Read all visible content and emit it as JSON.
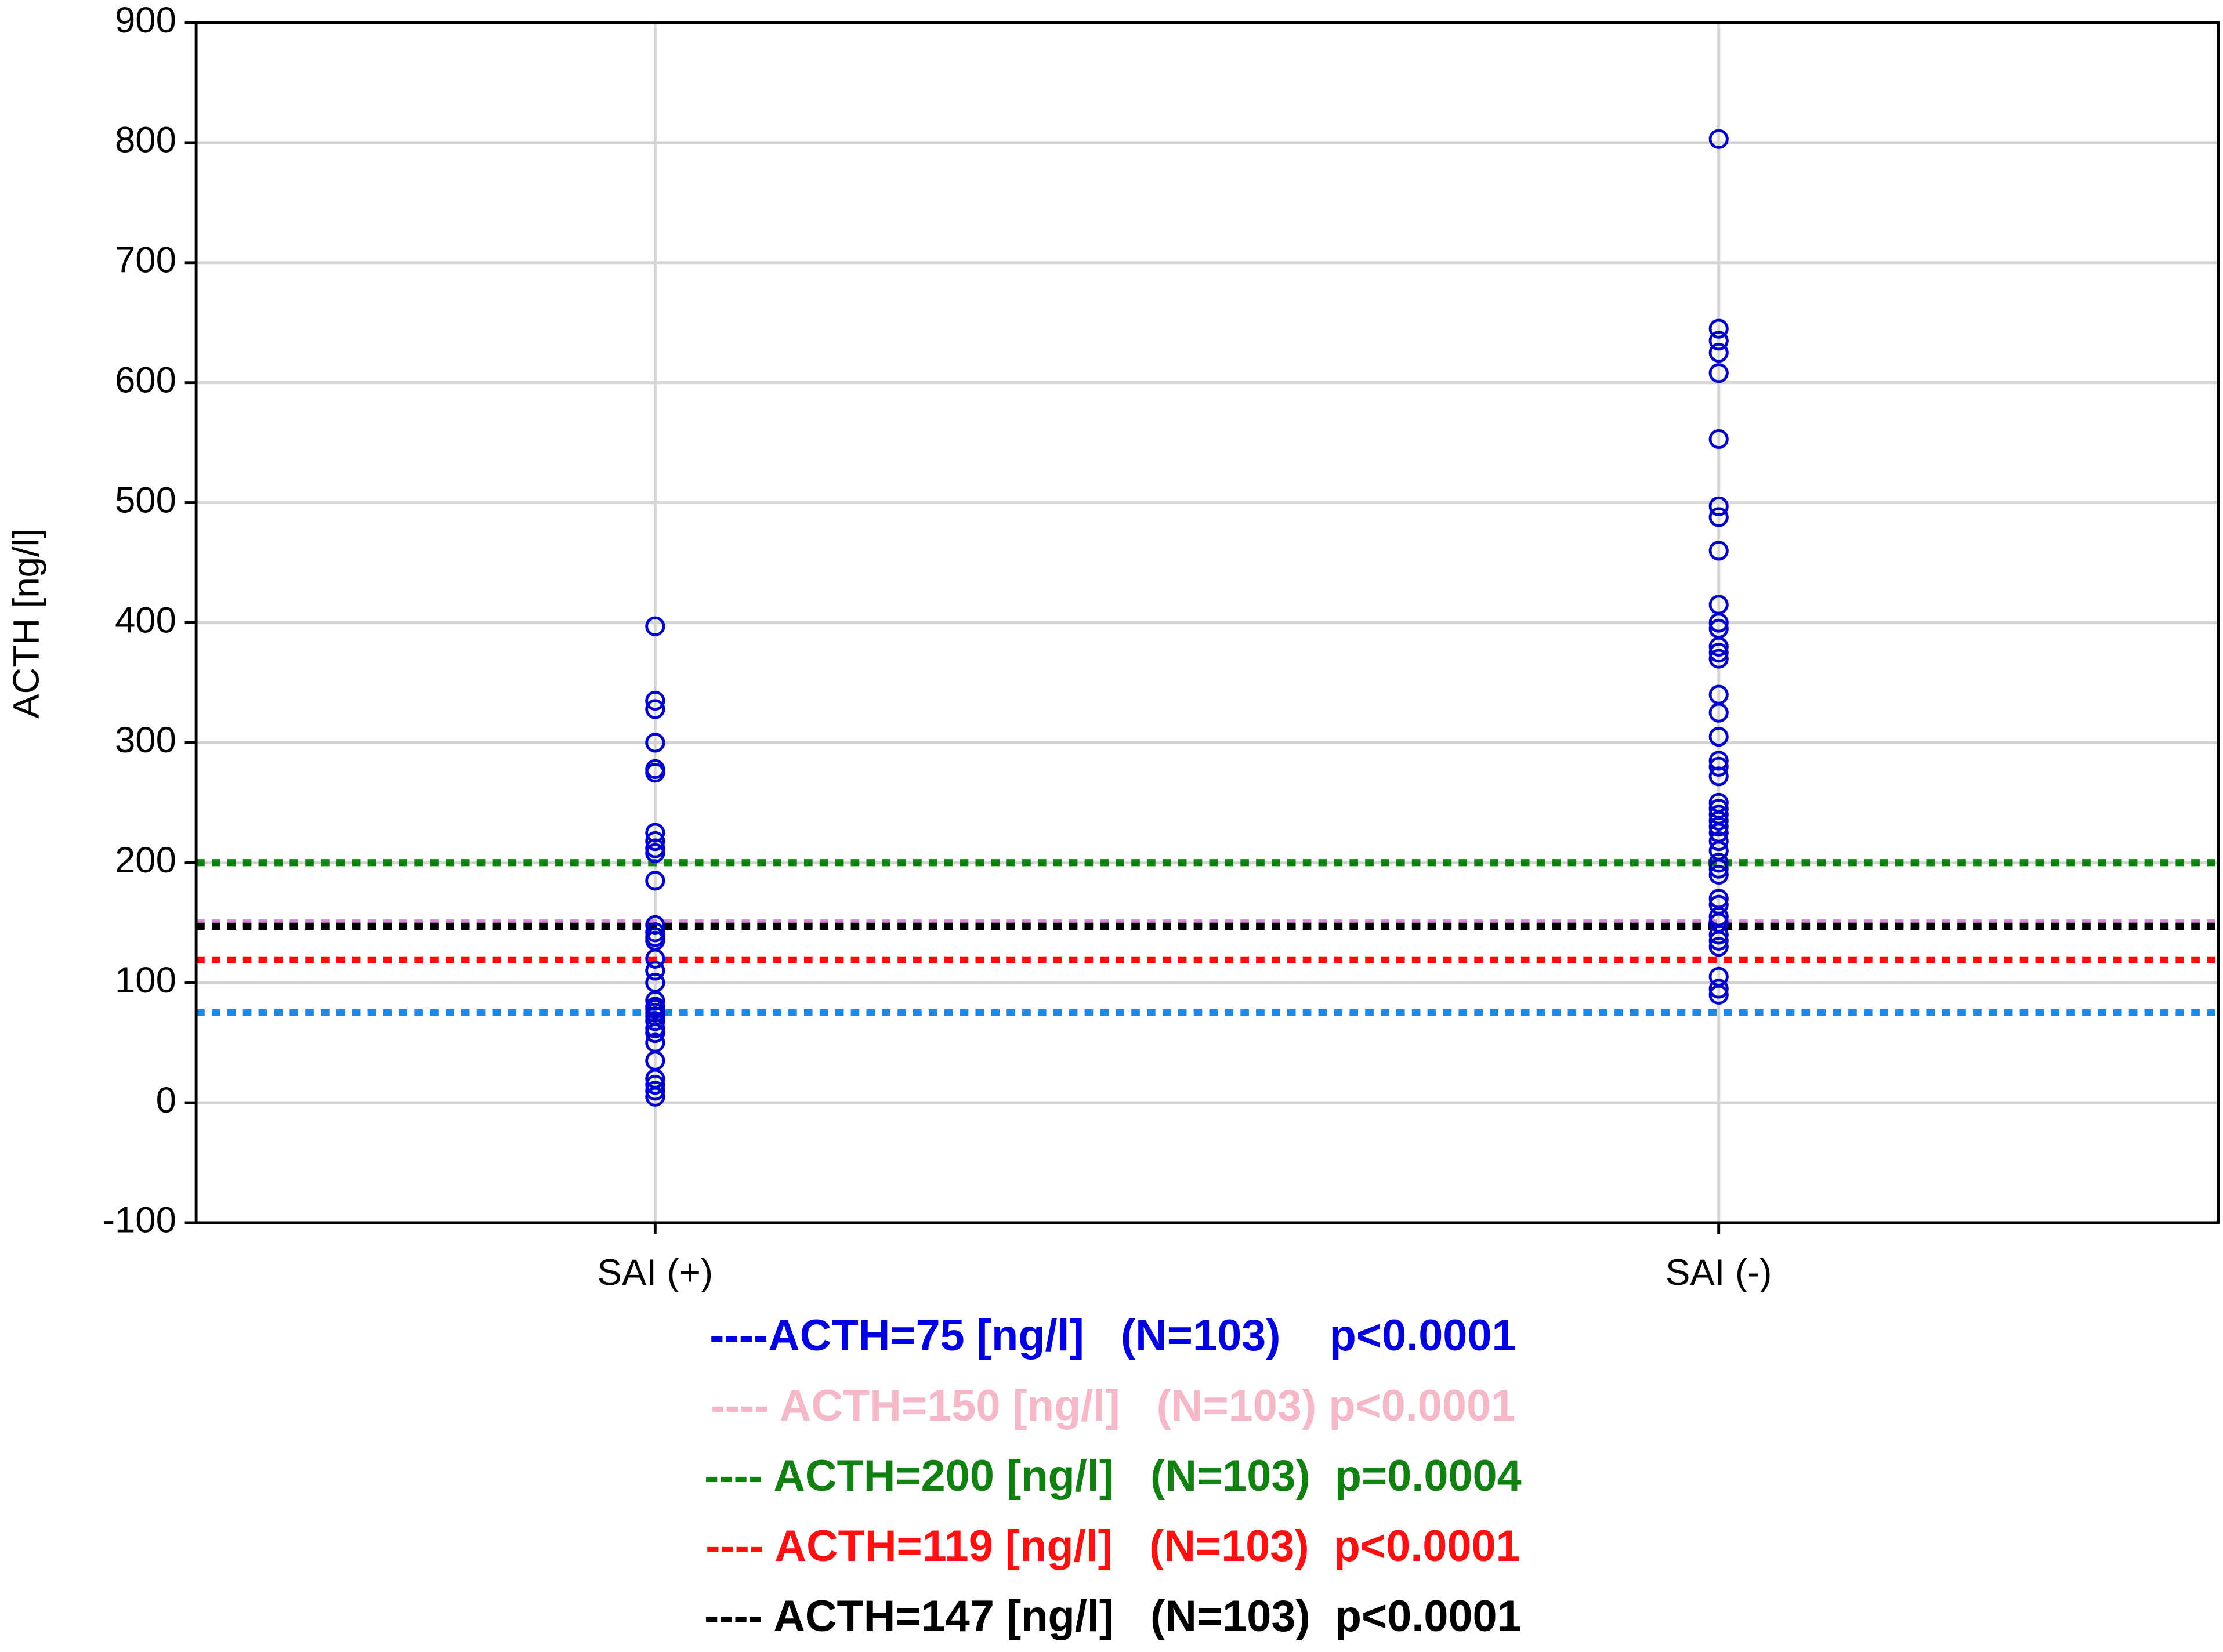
{
  "chart_data": {
    "type": "strip",
    "y_label": "ACTH [ng/l]",
    "categories": [
      "SAI (+)",
      "SAI (-)"
    ],
    "values": [
      [
        397,
        335,
        328,
        300,
        278,
        275,
        225,
        218,
        212,
        208,
        185,
        148,
        142,
        138,
        135,
        120,
        110,
        100,
        85,
        80,
        78,
        75,
        72,
        68,
        62,
        58,
        50,
        35,
        20,
        15,
        10,
        5
      ],
      [
        803,
        645,
        635,
        625,
        608,
        553,
        497,
        488,
        460,
        415,
        400,
        395,
        380,
        375,
        370,
        340,
        325,
        305,
        285,
        280,
        272,
        250,
        245,
        240,
        235,
        230,
        225,
        218,
        210,
        200,
        195,
        190,
        170,
        165,
        155,
        150,
        140,
        135,
        130,
        105,
        95,
        90
      ]
    ],
    "color": "#0000cc",
    "ylim": [
      -100,
      900
    ],
    "yticks": [
      -100,
      0,
      100,
      200,
      300,
      400,
      500,
      600,
      700,
      800,
      900
    ],
    "grid": true,
    "reference_lines": [
      {
        "value": 75,
        "color": "#1e88e5",
        "label": "----ACTH=75 [ng/l]   (N=103)    p<0.0001",
        "label_color": "#0000e0"
      },
      {
        "value": 150,
        "color": "#e08ae0",
        "label": "---- ACTH=150 [ng/l]   (N=103) p<0.0001",
        "label_color": "#f5b8c6"
      },
      {
        "value": 200,
        "color": "#108010",
        "label": "---- ACTH=200 [ng/l]   (N=103)  p=0.0004",
        "label_color": "#108010"
      },
      {
        "value": 119,
        "color": "#ff1010",
        "label": "---- ACTH=119 [ng/l]   (N=103)  p<0.0001",
        "label_color": "#ff1010"
      },
      {
        "value": 147,
        "color": "#000000",
        "label": "---- ACTH=147 [ng/l]   (N=103)  p<0.0001",
        "label_color": "#000000"
      }
    ]
  }
}
